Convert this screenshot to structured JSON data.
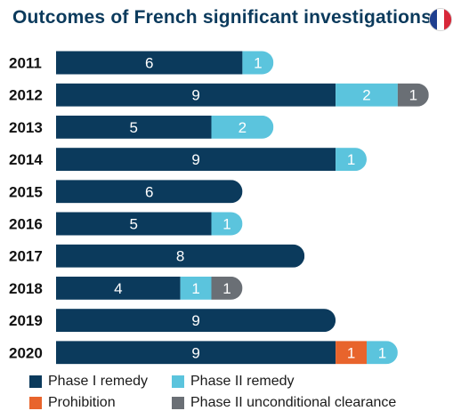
{
  "title": "Outcomes of French significant investigations",
  "chart_data": {
    "type": "bar",
    "orientation": "horizontal",
    "stacked": true,
    "categories": [
      "2011",
      "2012",
      "2013",
      "2014",
      "2015",
      "2016",
      "2017",
      "2018",
      "2019",
      "2020"
    ],
    "series": [
      {
        "name": "Phase I remedy",
        "color": "#0b3a5c",
        "values": [
          6,
          9,
          5,
          9,
          6,
          5,
          8,
          4,
          9,
          9
        ]
      },
      {
        "name": "Prohibition",
        "color": "#e8642c",
        "values": [
          0,
          0,
          0,
          0,
          0,
          0,
          0,
          0,
          0,
          1
        ]
      },
      {
        "name": "Phase II remedy",
        "color": "#5bc4dd",
        "values": [
          1,
          2,
          2,
          1,
          0,
          1,
          0,
          1,
          0,
          1
        ]
      },
      {
        "name": "Phase II unconditional clearance",
        "color": "#6a6f75",
        "values": [
          0,
          1,
          0,
          0,
          0,
          0,
          0,
          1,
          0,
          0
        ]
      }
    ],
    "legend_position": "bottom",
    "grid": false
  },
  "flag_icon": "france-flag-icon"
}
